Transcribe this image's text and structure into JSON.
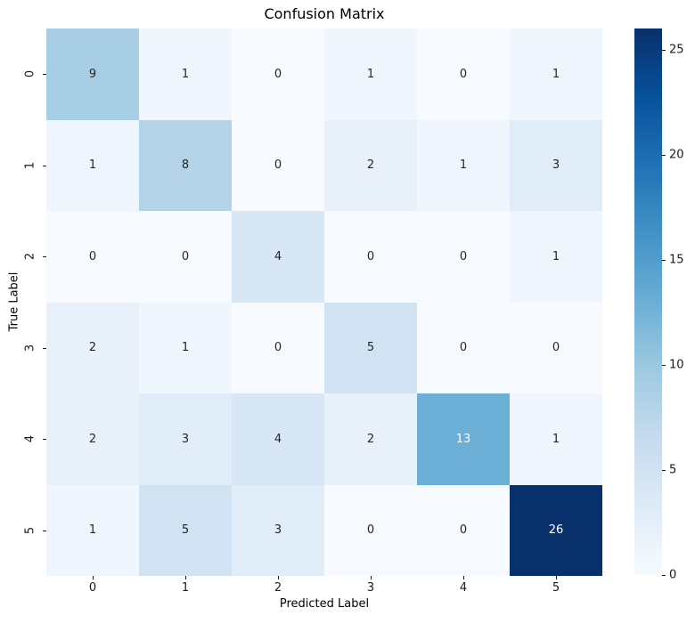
{
  "chart_data": {
    "type": "heatmap",
    "title": "Confusion Matrix",
    "xlabel": "Predicted Label",
    "ylabel": "True Label",
    "x_tick_labels": [
      "0",
      "1",
      "2",
      "3",
      "4",
      "5"
    ],
    "y_tick_labels": [
      "0",
      "1",
      "2",
      "3",
      "4",
      "5"
    ],
    "matrix": [
      [
        9,
        1,
        0,
        1,
        0,
        1
      ],
      [
        1,
        8,
        0,
        2,
        1,
        3
      ],
      [
        0,
        0,
        4,
        0,
        0,
        1
      ],
      [
        2,
        1,
        0,
        5,
        0,
        0
      ],
      [
        2,
        3,
        4,
        2,
        13,
        1
      ],
      [
        1,
        5,
        3,
        0,
        0,
        26
      ]
    ],
    "vmin": 0,
    "vmax": 26,
    "colormap": "Blues",
    "colormap_stops": [
      "#f7fbff",
      "#deebf7",
      "#c6dbef",
      "#9ecae1",
      "#6baed6",
      "#4292c6",
      "#2171b5",
      "#08519c",
      "#08306b"
    ],
    "colorbar_ticks": [
      0,
      5,
      10,
      15,
      20,
      25
    ],
    "legend_position": "right-colorbar",
    "grid": false,
    "annotations": true
  },
  "colors": {
    "background": "#ffffff",
    "annotation_dark": "#262626",
    "annotation_light": "#ffffff",
    "tick_text": "#1a1a1a"
  }
}
